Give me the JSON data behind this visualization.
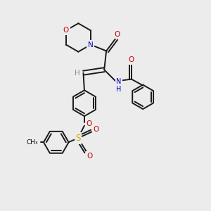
{
  "bg_color": "#ececec",
  "atom_colors": {
    "C": "#000000",
    "N": "#0000cc",
    "O": "#cc0000",
    "S": "#ccaa00",
    "H": "#7a9a7a"
  },
  "bond_color": "#1a1a1a",
  "lw": 1.4,
  "scale": 1.0
}
